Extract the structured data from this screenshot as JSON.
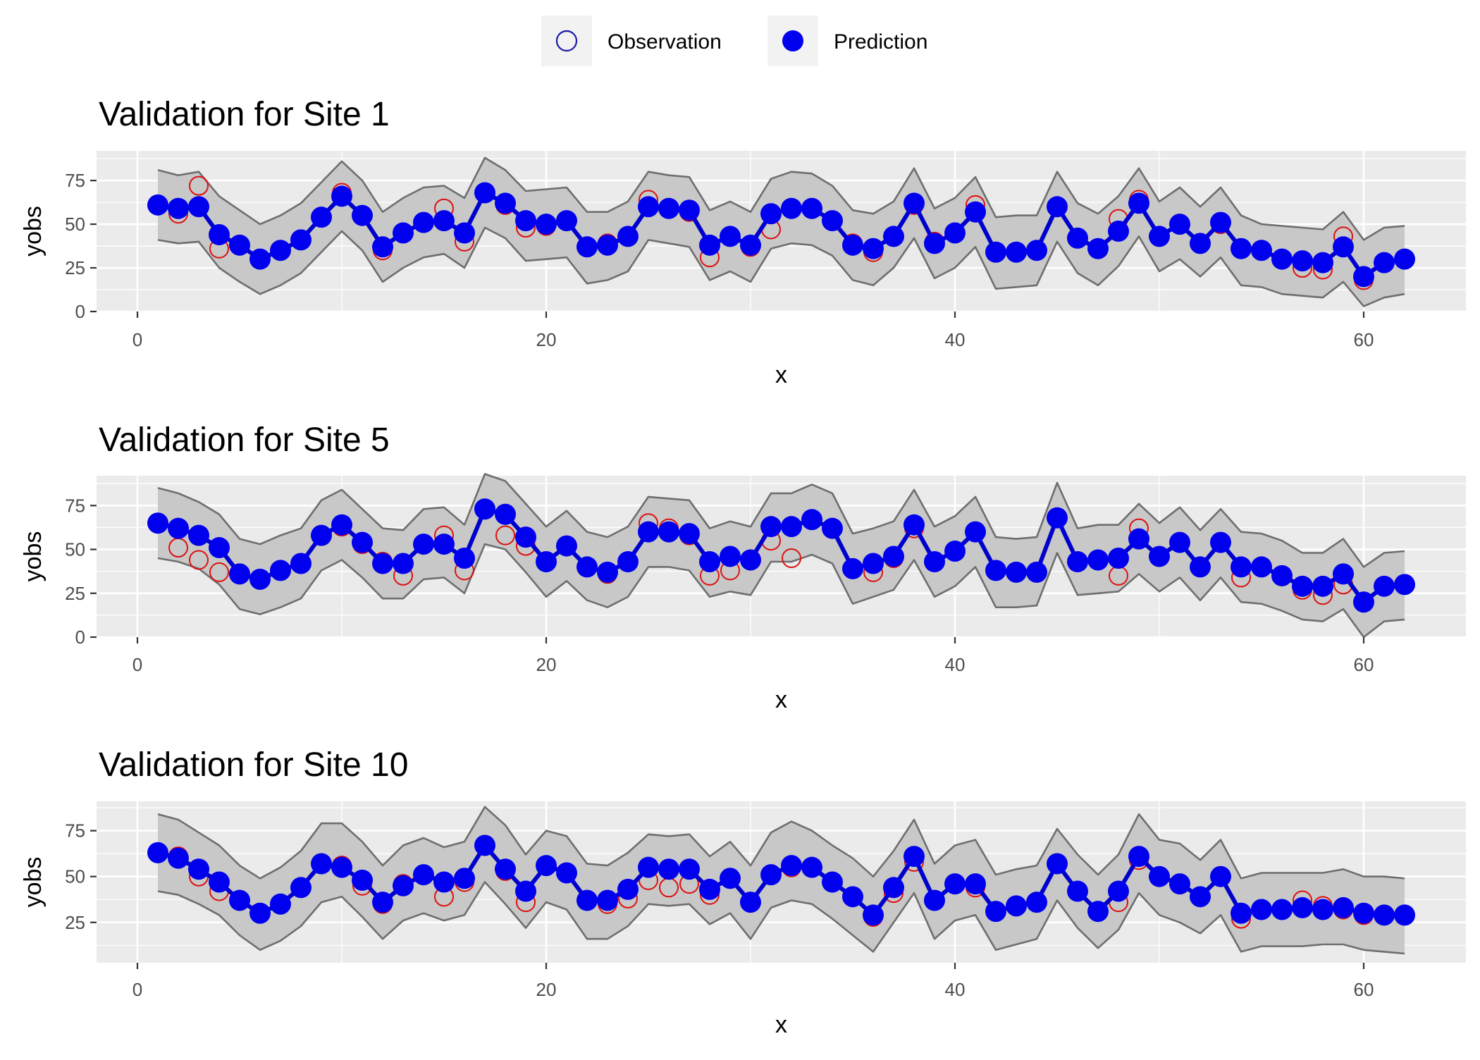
{
  "legend": {
    "entries": [
      {
        "label": "Observation",
        "style": "open-circle"
      },
      {
        "label": "Prediction",
        "style": "filled-circle"
      }
    ],
    "position": "top"
  },
  "colors": {
    "panel_background": "#ebebeb",
    "gridline": "#ffffff",
    "ribbon_fill": "#c8c8c8",
    "ribbon_edge": "#6e6e6e",
    "prediction": "#0000ee",
    "prediction_line": "#0000cc",
    "observation": "#dd1111",
    "legend_key_bg": "#f2f2f2",
    "legend_obs_stroke": "#1a1aaa"
  },
  "chart_data": [
    {
      "type": "line",
      "title": "Validation for Site 1",
      "xlabel": "x",
      "ylabel": "yobs",
      "xlim": [
        -2,
        65
      ],
      "ylim": [
        0,
        92
      ],
      "xticks": [
        0,
        20,
        40,
        60
      ],
      "yticks": [
        0,
        25,
        50,
        75
      ],
      "grid": true,
      "x": [
        1,
        2,
        3,
        4,
        5,
        6,
        7,
        8,
        9,
        10,
        11,
        12,
        13,
        14,
        15,
        16,
        17,
        18,
        19,
        20,
        21,
        22,
        23,
        24,
        25,
        26,
        27,
        28,
        29,
        30,
        31,
        32,
        33,
        34,
        35,
        36,
        37,
        38,
        39,
        40,
        41,
        42,
        43,
        44,
        45,
        46,
        47,
        48,
        49,
        50,
        51,
        52,
        53,
        54,
        55,
        56,
        57,
        58,
        59,
        60,
        61,
        62
      ],
      "series": [
        {
          "name": "Observation",
          "values": [
            61,
            56,
            72,
            36,
            38,
            30,
            35,
            41,
            54,
            68,
            55,
            35,
            45,
            51,
            59,
            40,
            68,
            61,
            48,
            49,
            52,
            37,
            39,
            43,
            64,
            59,
            57,
            31,
            43,
            37,
            47,
            59,
            59,
            52,
            39,
            34,
            43,
            61,
            40,
            45,
            61,
            34,
            34,
            35,
            60,
            42,
            36,
            53,
            64,
            43,
            50,
            39,
            50,
            36,
            35,
            30,
            25,
            24,
            43,
            18,
            28,
            30
          ]
        },
        {
          "name": "Prediction",
          "values": [
            61,
            59,
            60,
            44,
            38,
            30,
            35,
            41,
            54,
            66,
            55,
            37,
            45,
            51,
            52,
            45,
            68,
            62,
            52,
            50,
            52,
            37,
            38,
            43,
            60,
            59,
            58,
            38,
            43,
            38,
            56,
            59,
            59,
            52,
            38,
            36,
            43,
            62,
            39,
            45,
            57,
            34,
            34,
            35,
            60,
            42,
            36,
            46,
            62,
            43,
            50,
            39,
            51,
            36,
            35,
            30,
            29,
            28,
            37,
            20,
            28,
            30
          ]
        },
        {
          "name": "Upper",
          "values": [
            81,
            78,
            80,
            66,
            58,
            50,
            55,
            62,
            74,
            86,
            75,
            57,
            65,
            71,
            72,
            65,
            88,
            81,
            69,
            70,
            71,
            57,
            57,
            63,
            80,
            78,
            77,
            58,
            63,
            57,
            76,
            80,
            79,
            72,
            58,
            56,
            63,
            82,
            59,
            65,
            77,
            54,
            55,
            55,
            80,
            62,
            56,
            66,
            82,
            63,
            71,
            60,
            71,
            55,
            50,
            49,
            48,
            47,
            57,
            41,
            48,
            49
          ]
        },
        {
          "name": "Lower",
          "values": [
            41,
            39,
            40,
            25,
            17,
            10,
            15,
            22,
            34,
            46,
            35,
            17,
            25,
            31,
            33,
            25,
            48,
            42,
            29,
            30,
            31,
            16,
            18,
            23,
            41,
            39,
            37,
            18,
            23,
            17,
            36,
            39,
            38,
            32,
            18,
            15,
            25,
            42,
            19,
            25,
            37,
            13,
            14,
            15,
            40,
            22,
            15,
            26,
            43,
            23,
            30,
            20,
            31,
            15,
            14,
            10,
            9,
            8,
            17,
            3,
            8,
            10
          ]
        }
      ]
    },
    {
      "type": "line",
      "title": "Validation for Site 5",
      "xlabel": "x",
      "ylabel": "yobs",
      "xlim": [
        -2,
        65
      ],
      "ylim": [
        0,
        92
      ],
      "xticks": [
        0,
        20,
        40,
        60
      ],
      "yticks": [
        0,
        25,
        50,
        75
      ],
      "grid": true,
      "x": [
        1,
        2,
        3,
        4,
        5,
        6,
        7,
        8,
        9,
        10,
        11,
        12,
        13,
        14,
        15,
        16,
        17,
        18,
        19,
        20,
        21,
        22,
        23,
        24,
        25,
        26,
        27,
        28,
        29,
        30,
        31,
        32,
        33,
        34,
        35,
        36,
        37,
        38,
        39,
        40,
        41,
        42,
        43,
        44,
        45,
        46,
        47,
        48,
        49,
        50,
        51,
        52,
        53,
        54,
        55,
        56,
        57,
        58,
        59,
        60,
        61,
        62
      ],
      "series": [
        {
          "name": "Observation",
          "values": [
            65,
            51,
            44,
            37,
            36,
            33,
            38,
            42,
            58,
            63,
            53,
            43,
            35,
            53,
            58,
            38,
            73,
            58,
            52,
            43,
            52,
            40,
            36,
            43,
            65,
            62,
            58,
            35,
            38,
            44,
            55,
            45,
            67,
            62,
            39,
            37,
            45,
            62,
            43,
            49,
            60,
            38,
            37,
            37,
            68,
            43,
            44,
            35,
            62,
            46,
            54,
            40,
            54,
            34,
            40,
            35,
            27,
            24,
            30,
            20,
            29,
            30
          ]
        },
        {
          "name": "Prediction",
          "values": [
            65,
            62,
            58,
            51,
            36,
            33,
            38,
            42,
            58,
            64,
            54,
            42,
            42,
            53,
            53,
            45,
            73,
            70,
            57,
            43,
            52,
            40,
            37,
            43,
            60,
            60,
            59,
            43,
            46,
            44,
            63,
            63,
            67,
            62,
            39,
            42,
            46,
            64,
            43,
            49,
            60,
            38,
            37,
            37,
            68,
            43,
            44,
            45,
            56,
            46,
            54,
            40,
            54,
            40,
            40,
            35,
            29,
            29,
            36,
            20,
            29,
            30
          ]
        },
        {
          "name": "Upper",
          "values": [
            85,
            82,
            77,
            70,
            56,
            53,
            58,
            62,
            78,
            84,
            73,
            62,
            61,
            73,
            74,
            64,
            93,
            89,
            76,
            63,
            72,
            60,
            57,
            63,
            80,
            79,
            78,
            62,
            66,
            63,
            82,
            82,
            87,
            82,
            59,
            62,
            66,
            84,
            63,
            69,
            80,
            57,
            56,
            57,
            88,
            62,
            64,
            64,
            76,
            65,
            74,
            61,
            73,
            60,
            59,
            55,
            48,
            48,
            56,
            40,
            48,
            49
          ]
        },
        {
          "name": "Lower",
          "values": [
            45,
            43,
            39,
            30,
            16,
            13,
            17,
            22,
            38,
            44,
            34,
            22,
            22,
            33,
            34,
            25,
            53,
            50,
            37,
            23,
            32,
            21,
            17,
            23,
            40,
            40,
            38,
            23,
            26,
            24,
            43,
            43,
            47,
            42,
            19,
            23,
            27,
            44,
            23,
            29,
            40,
            17,
            17,
            18,
            48,
            24,
            25,
            26,
            36,
            26,
            34,
            21,
            34,
            20,
            19,
            15,
            10,
            9,
            16,
            0,
            9,
            10
          ]
        }
      ]
    },
    {
      "type": "line",
      "title": "Validation for Site 10",
      "xlabel": "x",
      "ylabel": "yobs",
      "xlim": [
        -2,
        65
      ],
      "ylim": [
        3,
        91
      ],
      "xticks": [
        0,
        20,
        40,
        60
      ],
      "yticks": [
        25,
        50,
        75
      ],
      "grid": true,
      "x": [
        1,
        2,
        3,
        4,
        5,
        6,
        7,
        8,
        9,
        10,
        11,
        12,
        13,
        14,
        15,
        16,
        17,
        18,
        19,
        20,
        21,
        22,
        23,
        24,
        25,
        26,
        27,
        28,
        29,
        30,
        31,
        32,
        33,
        34,
        35,
        36,
        37,
        38,
        39,
        40,
        41,
        42,
        43,
        44,
        45,
        46,
        47,
        48,
        49,
        50,
        51,
        52,
        53,
        54,
        55,
        56,
        57,
        58,
        59,
        60,
        61,
        62
      ],
      "series": [
        {
          "name": "Observation",
          "values": [
            63,
            61,
            50,
            42,
            37,
            30,
            35,
            44,
            57,
            56,
            45,
            35,
            46,
            51,
            39,
            47,
            67,
            53,
            36,
            56,
            52,
            37,
            35,
            38,
            48,
            44,
            46,
            40,
            49,
            36,
            51,
            55,
            55,
            47,
            39,
            28,
            41,
            58,
            37,
            46,
            44,
            31,
            34,
            36,
            57,
            42,
            31,
            36,
            59,
            50,
            46,
            39,
            50,
            27,
            32,
            32,
            37,
            34,
            32,
            29,
            29,
            29
          ]
        },
        {
          "name": "Prediction",
          "values": [
            63,
            60,
            54,
            47,
            37,
            30,
            35,
            44,
            57,
            55,
            48,
            36,
            45,
            51,
            47,
            49,
            67,
            54,
            42,
            56,
            52,
            37,
            37,
            43,
            55,
            54,
            54,
            43,
            49,
            36,
            51,
            56,
            55,
            47,
            39,
            29,
            44,
            61,
            37,
            46,
            46,
            31,
            34,
            36,
            57,
            42,
            31,
            42,
            61,
            50,
            46,
            39,
            50,
            30,
            32,
            32,
            33,
            32,
            33,
            30,
            29,
            29
          ]
        },
        {
          "name": "Upper",
          "values": [
            84,
            81,
            74,
            67,
            56,
            49,
            55,
            64,
            79,
            79,
            69,
            56,
            67,
            71,
            66,
            69,
            88,
            78,
            62,
            75,
            72,
            57,
            56,
            63,
            73,
            72,
            73,
            61,
            69,
            56,
            74,
            80,
            75,
            67,
            60,
            50,
            64,
            81,
            57,
            67,
            70,
            51,
            54,
            56,
            76,
            62,
            51,
            62,
            84,
            70,
            68,
            59,
            70,
            49,
            52,
            52,
            52,
            52,
            54,
            50,
            50,
            49
          ]
        },
        {
          "name": "Lower",
          "values": [
            42,
            40,
            35,
            29,
            18,
            10,
            15,
            23,
            36,
            39,
            28,
            16,
            26,
            30,
            26,
            29,
            47,
            35,
            22,
            36,
            32,
            16,
            16,
            23,
            35,
            34,
            35,
            24,
            30,
            16,
            33,
            37,
            35,
            27,
            18,
            9,
            25,
            41,
            16,
            26,
            29,
            10,
            13,
            16,
            37,
            22,
            11,
            21,
            41,
            29,
            25,
            19,
            29,
            9,
            12,
            12,
            12,
            13,
            13,
            10,
            9,
            8
          ]
        }
      ]
    }
  ]
}
